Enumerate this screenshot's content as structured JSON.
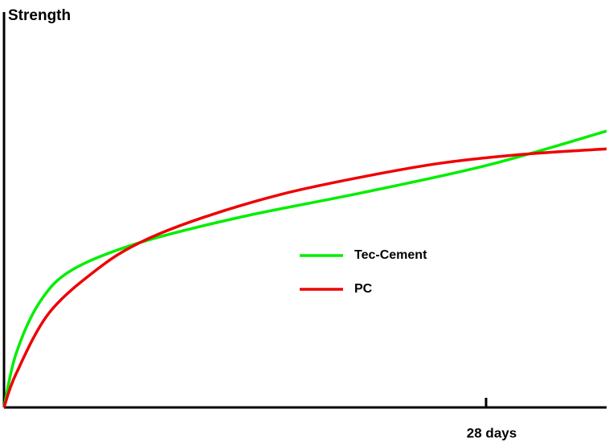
{
  "chart_data": {
    "type": "line",
    "y_label": "Strength",
    "xlim": [
      0,
      35
    ],
    "ylim": [
      0,
      100
    ],
    "xticks": [
      {
        "value": 28,
        "label": "28 days"
      }
    ],
    "series": [
      {
        "name": "Tec-Cement",
        "color": "#00ee00",
        "x": [
          0,
          0.7,
          2.1,
          4.0,
          7.9,
          13.8,
          20.8,
          28.2,
          35.0
        ],
        "values": [
          0,
          13.6,
          26.8,
          34.9,
          41.7,
          48.2,
          54.3,
          61.4,
          69.9
        ]
      },
      {
        "name": "PC",
        "color": "#ee0000",
        "x": [
          0,
          0.7,
          2.6,
          5.4,
          7.9,
          11.4,
          16.1,
          20.8,
          25.4,
          30.1,
          35.0
        ],
        "values": [
          0,
          8.5,
          23.8,
          34.9,
          41.7,
          47.8,
          53.9,
          58.3,
          61.8,
          64.0,
          65.4
        ]
      }
    ]
  }
}
